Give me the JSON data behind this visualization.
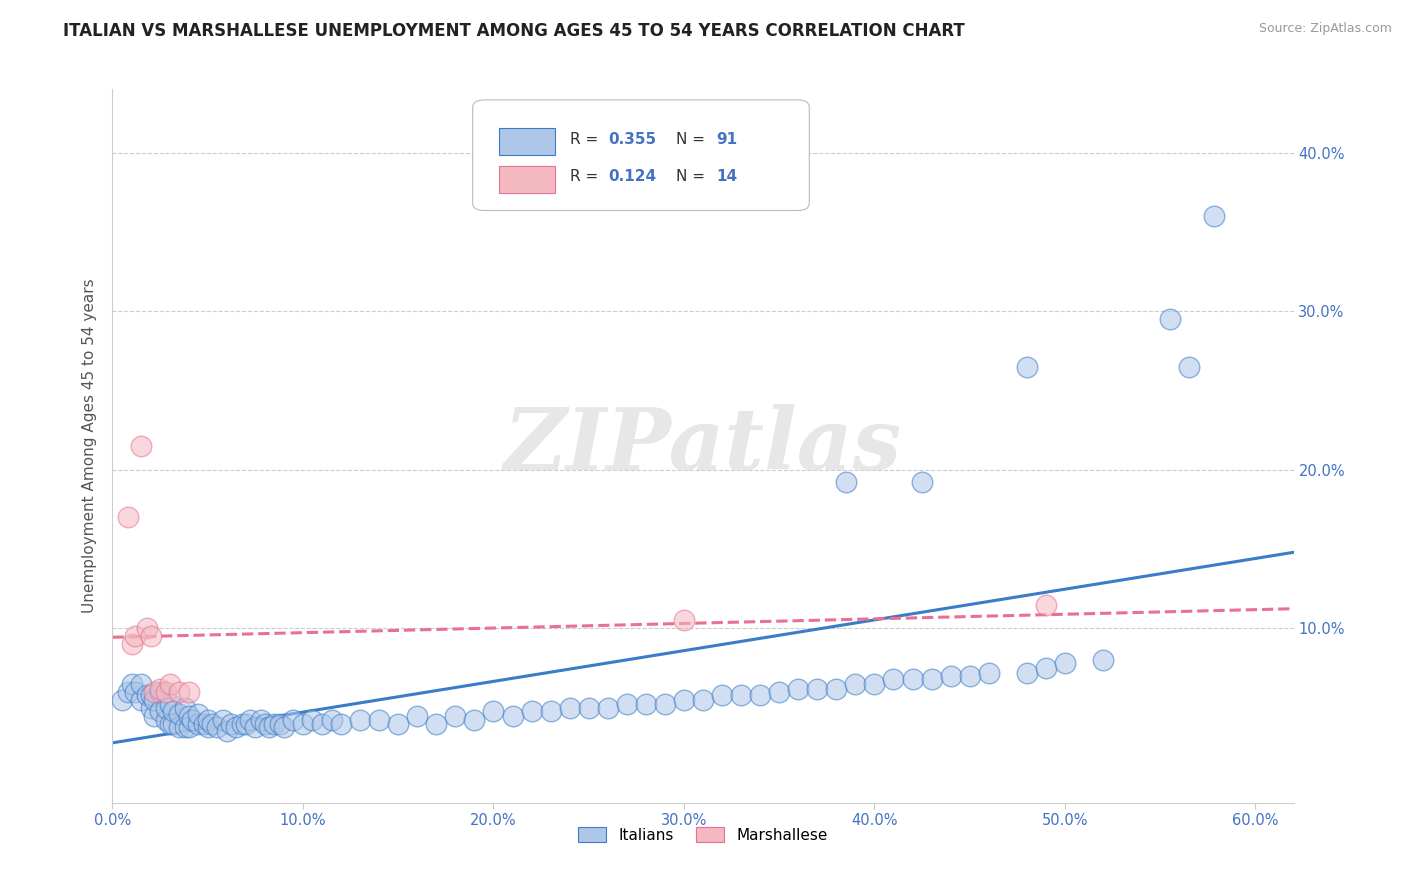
{
  "title": "ITALIAN VS MARSHALLESE UNEMPLOYMENT AMONG AGES 45 TO 54 YEARS CORRELATION CHART",
  "source": "Source: ZipAtlas.com",
  "ylabel": "Unemployment Among Ages 45 to 54 years",
  "xlim": [
    0.0,
    0.62
  ],
  "ylim": [
    -0.01,
    0.44
  ],
  "xticks": [
    0.0,
    0.1,
    0.2,
    0.3,
    0.4,
    0.5,
    0.6
  ],
  "xticklabels": [
    "0.0%",
    "10.0%",
    "20.0%",
    "30.0%",
    "40.0%",
    "50.0%",
    "60.0%"
  ],
  "yticks": [
    0.1,
    0.2,
    0.3,
    0.4
  ],
  "yticklabels": [
    "10.0%",
    "20.0%",
    "30.0%",
    "40.0%"
  ],
  "legend_R1": "0.355",
  "legend_N1": "91",
  "legend_R2": "0.124",
  "legend_N2": "14",
  "italian_color": "#aec6e8",
  "marshallese_color": "#f4b8c1",
  "italian_line_color": "#3a7cc7",
  "marshallese_line_color": "#e87090",
  "tick_color": "#4472c4",
  "watermark_text": "ZIPatlas",
  "title_fontsize": 12,
  "axis_label_fontsize": 11,
  "tick_fontsize": 10.5,
  "italian_x": [
    0.005,
    0.008,
    0.01,
    0.012,
    0.015,
    0.015,
    0.018,
    0.02,
    0.02,
    0.022,
    0.022,
    0.025,
    0.025,
    0.028,
    0.028,
    0.03,
    0.03,
    0.032,
    0.032,
    0.035,
    0.035,
    0.038,
    0.038,
    0.04,
    0.04,
    0.042,
    0.045,
    0.045,
    0.048,
    0.05,
    0.05,
    0.052,
    0.055,
    0.058,
    0.06,
    0.062,
    0.065,
    0.068,
    0.07,
    0.072,
    0.075,
    0.078,
    0.08,
    0.082,
    0.085,
    0.088,
    0.09,
    0.095,
    0.1,
    0.105,
    0.11,
    0.115,
    0.12,
    0.13,
    0.14,
    0.15,
    0.16,
    0.17,
    0.18,
    0.19,
    0.2,
    0.21,
    0.22,
    0.23,
    0.24,
    0.25,
    0.26,
    0.27,
    0.28,
    0.29,
    0.3,
    0.31,
    0.32,
    0.33,
    0.34,
    0.35,
    0.36,
    0.37,
    0.38,
    0.39,
    0.4,
    0.41,
    0.42,
    0.43,
    0.44,
    0.45,
    0.46,
    0.48,
    0.49,
    0.5,
    0.52
  ],
  "italian_y": [
    0.055,
    0.06,
    0.065,
    0.06,
    0.055,
    0.065,
    0.058,
    0.05,
    0.058,
    0.045,
    0.055,
    0.048,
    0.06,
    0.042,
    0.05,
    0.04,
    0.052,
    0.04,
    0.048,
    0.038,
    0.046,
    0.038,
    0.05,
    0.038,
    0.045,
    0.042,
    0.04,
    0.046,
    0.04,
    0.038,
    0.042,
    0.04,
    0.038,
    0.042,
    0.035,
    0.04,
    0.038,
    0.04,
    0.04,
    0.042,
    0.038,
    0.042,
    0.04,
    0.038,
    0.04,
    0.04,
    0.038,
    0.042,
    0.04,
    0.042,
    0.04,
    0.042,
    0.04,
    0.042,
    0.042,
    0.04,
    0.045,
    0.04,
    0.045,
    0.042,
    0.048,
    0.045,
    0.048,
    0.048,
    0.05,
    0.05,
    0.05,
    0.052,
    0.052,
    0.052,
    0.055,
    0.055,
    0.058,
    0.058,
    0.058,
    0.06,
    0.062,
    0.062,
    0.062,
    0.065,
    0.065,
    0.068,
    0.068,
    0.068,
    0.07,
    0.07,
    0.072,
    0.072,
    0.075,
    0.078,
    0.08
  ],
  "italian_outlier_x": [
    0.385,
    0.425,
    0.48,
    0.555,
    0.565,
    0.578
  ],
  "italian_outlier_y": [
    0.192,
    0.192,
    0.265,
    0.295,
    0.265,
    0.36
  ],
  "marshallese_x": [
    0.008,
    0.01,
    0.012,
    0.015,
    0.018,
    0.02,
    0.022,
    0.025,
    0.028,
    0.03,
    0.035,
    0.04,
    0.3,
    0.49
  ],
  "marshallese_y": [
    0.17,
    0.09,
    0.095,
    0.215,
    0.1,
    0.095,
    0.06,
    0.062,
    0.06,
    0.065,
    0.06,
    0.06,
    0.105,
    0.115
  ]
}
